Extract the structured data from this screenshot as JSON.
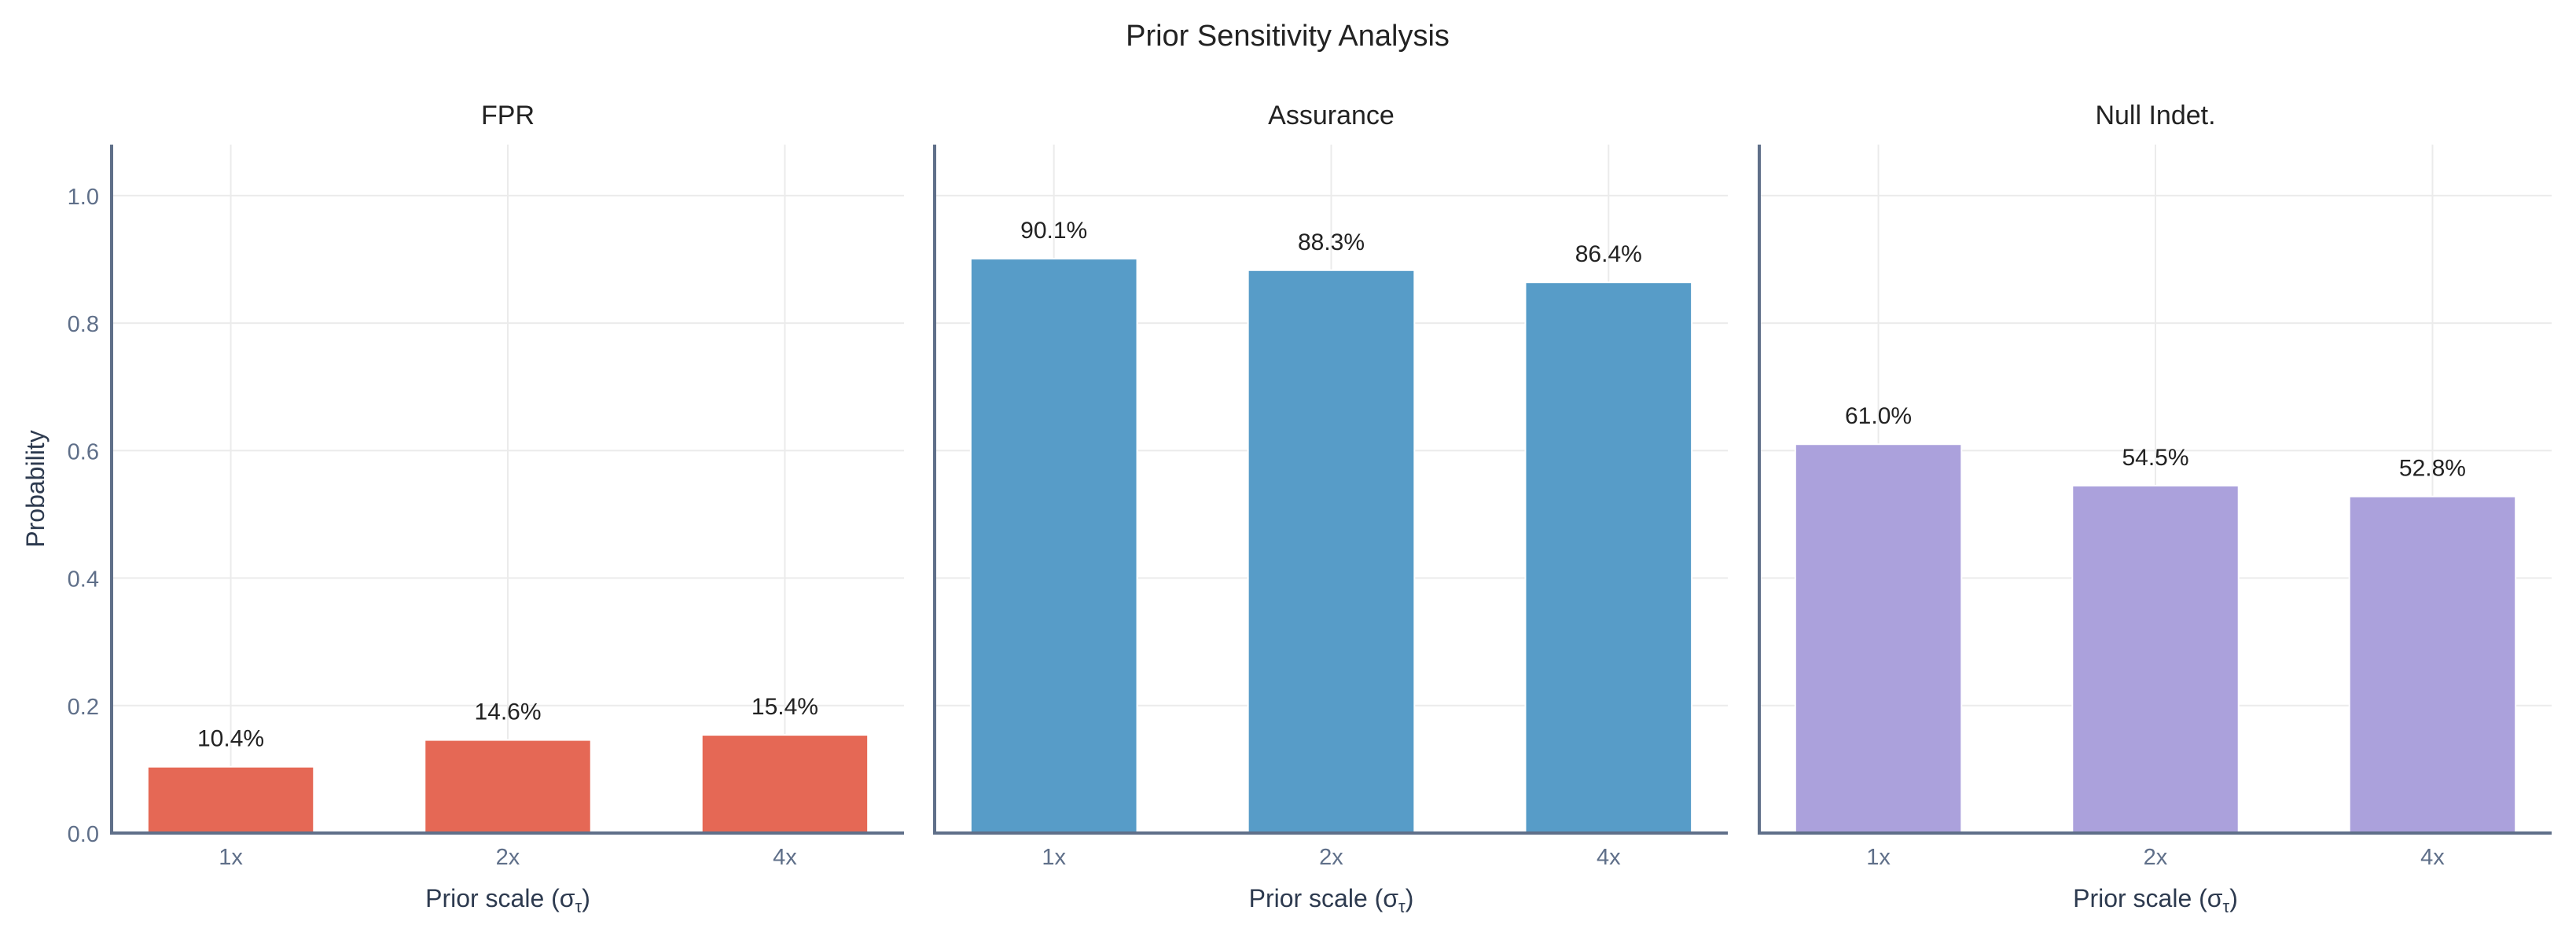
{
  "chart_data": {
    "type": "bar",
    "title": "Prior Sensitivity Analysis",
    "ylabel": "Probability",
    "ylim": [
      0,
      1.08
    ],
    "yticks": [
      "0.0",
      "0.2",
      "0.4",
      "0.6",
      "0.8",
      "1.0"
    ],
    "grid": true,
    "categories": [
      "1x",
      "2x",
      "4x"
    ],
    "xlabel": "Prior scale (σ",
    "xlabel_sub": "τ",
    "xlabel_end": ")",
    "panels": [
      {
        "title": "FPR",
        "color": "#E4634F",
        "values": [
          0.104,
          0.146,
          0.154
        ],
        "labels": [
          "10.4%",
          "14.6%",
          "15.4%"
        ]
      },
      {
        "title": "Assurance",
        "color": "#5299C6",
        "values": [
          0.901,
          0.883,
          0.864
        ],
        "labels": [
          "90.1%",
          "88.3%",
          "86.4%"
        ]
      },
      {
        "title": "Null Indet.",
        "color": "#A89EDB",
        "values": [
          0.61,
          0.545,
          0.528
        ],
        "labels": [
          "61.0%",
          "54.5%",
          "52.8%"
        ]
      }
    ]
  }
}
